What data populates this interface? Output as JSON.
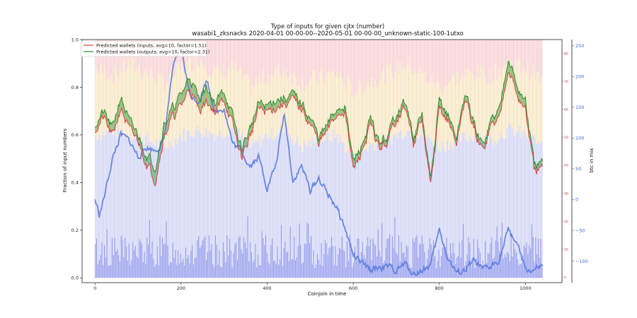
{
  "chart_data": {
    "type": "line",
    "title": "Type of inputs for given cjtx (number)",
    "subtitle": "wasabi1_zksnacks 2020-04-01 00-00-00--2020-05-01 00-00-00_unknown-static-100-1utxo",
    "xlabel": "Coinjoin in time",
    "ylabel": "Fraction of input numbers",
    "y2label": "",
    "y3label": "btc in mix",
    "xlim": [
      -30,
      1085
    ],
    "ylim": [
      -0.02,
      1.0
    ],
    "y2lim": [
      -2,
      85
    ],
    "y3lim": [
      -135,
      260
    ],
    "xticks": [
      0,
      200,
      400,
      600,
      800,
      1000
    ],
    "yticks": [
      0.0,
      0.2,
      0.4,
      0.6,
      0.8,
      1.0
    ],
    "y2ticks": [
      0,
      10,
      20,
      30,
      40,
      50,
      60,
      70,
      80
    ],
    "y3ticks": [
      -100,
      -50,
      0,
      50,
      100,
      150,
      200,
      250
    ],
    "legend_position": "top-left",
    "grid": false,
    "colors": {
      "inputs": "#e04040",
      "outputs": "#2e8b2e",
      "btc": "#5577dd",
      "band_pink": "#f9c6c6",
      "band_yellow": "#fbe3b0",
      "band_blue": "#c8ccf2",
      "bars_blue": "#6a75e8",
      "right_axis_red": "#cc3333",
      "right_axis_blue": "#4466cc"
    },
    "series": [
      {
        "name": "Predicted wallets (inputs, avg=10, factor=1.51)",
        "axis": "y2",
        "x": [
          0,
          20,
          40,
          60,
          80,
          100,
          120,
          140,
          160,
          180,
          200,
          220,
          240,
          260,
          280,
          300,
          320,
          340,
          360,
          380,
          400,
          420,
          440,
          460,
          480,
          500,
          520,
          540,
          560,
          580,
          600,
          620,
          640,
          660,
          680,
          700,
          720,
          740,
          760,
          780,
          800,
          820,
          840,
          860,
          880,
          900,
          920,
          940,
          960,
          980,
          1000,
          1020,
          1040
        ],
        "values": [
          53,
          57,
          50,
          61,
          52,
          49,
          41,
          35,
          51,
          57,
          61,
          68,
          60,
          63,
          59,
          64,
          54,
          43,
          50,
          60,
          59,
          61,
          62,
          63,
          60,
          55,
          48,
          52,
          58,
          60,
          38,
          45,
          54,
          46,
          48,
          57,
          61,
          48,
          56,
          32,
          60,
          56,
          48,
          64,
          53,
          45,
          54,
          57,
          76,
          65,
          60,
          38,
          38
        ]
      },
      {
        "name": "Predicted wallets (outputs, avg=10, factor=2.31)",
        "axis": "y2",
        "x": [
          0,
          20,
          40,
          60,
          80,
          100,
          120,
          140,
          160,
          180,
          200,
          220,
          240,
          260,
          280,
          300,
          320,
          340,
          360,
          380,
          400,
          420,
          440,
          460,
          480,
          500,
          520,
          540,
          560,
          580,
          600,
          620,
          640,
          660,
          680,
          700,
          720,
          740,
          760,
          780,
          800,
          820,
          840,
          860,
          880,
          900,
          920,
          940,
          960,
          980,
          1000,
          1020,
          1040
        ],
        "values": [
          55,
          59,
          53,
          65,
          55,
          51,
          44,
          40,
          55,
          60,
          65,
          72,
          64,
          68,
          62,
          67,
          57,
          46,
          53,
          62,
          61,
          64,
          64,
          65,
          62,
          57,
          50,
          54,
          60,
          62,
          41,
          47,
          56,
          48,
          50,
          59,
          63,
          50,
          58,
          34,
          63,
          58,
          50,
          66,
          55,
          47,
          56,
          60,
          80,
          68,
          63,
          40,
          40
        ]
      },
      {
        "name": "btc in mix",
        "axis": "y3",
        "x": [
          0,
          10,
          20,
          40,
          60,
          80,
          100,
          120,
          140,
          160,
          180,
          200,
          210,
          220,
          240,
          260,
          280,
          300,
          320,
          340,
          360,
          380,
          400,
          420,
          440,
          460,
          480,
          500,
          520,
          540,
          560,
          580,
          600,
          620,
          640,
          660,
          680,
          700,
          720,
          740,
          760,
          780,
          800,
          820,
          840,
          860,
          880,
          900,
          920,
          940,
          960,
          980,
          1000,
          1020,
          1040
        ],
        "values": [
          0,
          -25,
          0,
          65,
          105,
          95,
          70,
          85,
          80,
          95,
          210,
          245,
          210,
          170,
          160,
          195,
          140,
          150,
          90,
          80,
          55,
          70,
          20,
          55,
          140,
          30,
          55,
          15,
          35,
          10,
          -10,
          -45,
          -90,
          -105,
          -115,
          -110,
          -110,
          -115,
          -105,
          -120,
          -115,
          -105,
          -50,
          -95,
          -120,
          -115,
          -100,
          -115,
          -110,
          -95,
          -50,
          -70,
          -115,
          -115,
          -110
        ]
      }
    ],
    "background_bands": {
      "axis": "y",
      "note_x": [
        0,
        40,
        80,
        120,
        160,
        200,
        240,
        280,
        320,
        360,
        400,
        440,
        480,
        520,
        560,
        600,
        640,
        680,
        720,
        760,
        800,
        840,
        880,
        920,
        960,
        1000,
        1040
      ],
      "blue_top": [
        0.6,
        0.62,
        0.6,
        0.58,
        0.55,
        0.6,
        0.62,
        0.6,
        0.63,
        0.55,
        0.6,
        0.62,
        0.55,
        0.58,
        0.6,
        0.5,
        0.56,
        0.58,
        0.62,
        0.6,
        0.55,
        0.58,
        0.6,
        0.58,
        0.62,
        0.6,
        0.55
      ],
      "yellow_top": [
        0.88,
        0.85,
        0.9,
        0.86,
        0.82,
        0.88,
        0.92,
        0.86,
        0.88,
        0.8,
        0.85,
        0.87,
        0.82,
        0.84,
        0.86,
        0.78,
        0.83,
        0.86,
        0.9,
        0.85,
        0.8,
        0.84,
        0.86,
        0.85,
        0.9,
        0.88,
        0.82
      ]
    }
  }
}
